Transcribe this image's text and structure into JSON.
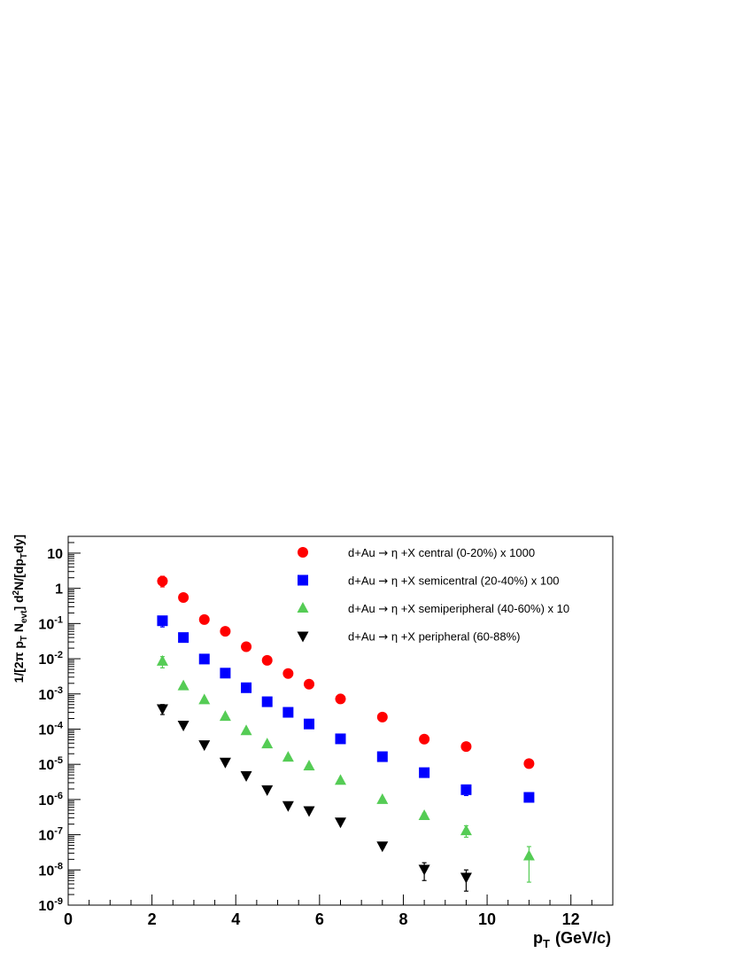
{
  "chart_data": {
    "type": "scatter",
    "x_axis": {
      "label": "p",
      "label_sub": "T",
      "label_unit": "(GeV/c)",
      "range": [
        0,
        13
      ],
      "ticks": [
        0,
        2,
        4,
        6,
        8,
        10,
        12
      ],
      "tick_labels": [
        "0",
        "2",
        "4",
        "6",
        "8",
        "10",
        "12"
      ]
    },
    "y_axis": {
      "scale": "log",
      "range": [
        1e-09,
        30
      ],
      "label": "1/[2π p_T N_evt] d²N/[dp_T dy]",
      "label_parts": [
        {
          "t": "1/[2π p",
          "s": "n"
        },
        {
          "t": "T",
          "s": "sub"
        },
        {
          "t": " N",
          "s": "n"
        },
        {
          "t": "evt",
          "s": "sub"
        },
        {
          "t": "] d",
          "s": "n"
        },
        {
          "t": "2",
          "s": "sup"
        },
        {
          "t": "N/[dp",
          "s": "n"
        },
        {
          "t": "T",
          "s": "sub"
        },
        {
          "t": "dy]",
          "s": "n"
        }
      ],
      "ticks": [
        {
          "value": 1e-09,
          "base": "10",
          "exp": "-9"
        },
        {
          "value": 1e-08,
          "base": "10",
          "exp": "-8"
        },
        {
          "value": 1e-07,
          "base": "10",
          "exp": "-7"
        },
        {
          "value": 1e-06,
          "base": "10",
          "exp": "-6"
        },
        {
          "value": 1e-05,
          "base": "10",
          "exp": "-5"
        },
        {
          "value": 0.0001,
          "base": "10",
          "exp": "-4"
        },
        {
          "value": 0.001,
          "base": "10",
          "exp": "-3"
        },
        {
          "value": 0.01,
          "base": "10",
          "exp": "-2"
        },
        {
          "value": 0.1,
          "base": "10",
          "exp": "-1"
        },
        {
          "value": 1,
          "base": "1",
          "exp": ""
        },
        {
          "value": 10,
          "base": "10",
          "exp": ""
        }
      ]
    },
    "legend_placement": "top-right",
    "grid": false,
    "series": [
      {
        "name": "d+Au → η +X central (0-20%) x 1000",
        "name_parts": [
          "d+Au ",
          "→",
          " η +X central (0-20%) x 1000"
        ],
        "marker": "circle",
        "color": "#ff0000",
        "x": [
          2.25,
          2.75,
          3.25,
          3.75,
          4.25,
          4.75,
          5.25,
          5.75,
          6.5,
          7.5,
          8.5,
          9.5,
          11.0
        ],
        "y": [
          1.6,
          0.55,
          0.13,
          0.06,
          0.022,
          0.009,
          0.0038,
          0.0019,
          0.00072,
          0.00022,
          5.2e-05,
          3.2e-05,
          1.05e-05
        ],
        "err_low": [
          1.1,
          0.52,
          0.124,
          0.058,
          0.021,
          0.0087,
          0.0037,
          0.0018,
          0.0007,
          0.000215,
          5e-05,
          3e-05,
          1e-05
        ],
        "err_high": [
          2.2,
          0.6,
          0.14,
          0.062,
          0.023,
          0.0093,
          0.0039,
          0.002,
          0.00074,
          0.000225,
          5.4e-05,
          3.4e-05,
          1.1e-05
        ]
      },
      {
        "name": "d+Au → η +X semicentral (20-40%) x 100",
        "name_parts": [
          "d+Au ",
          "→",
          " η +X semicentral (20-40%) x 100"
        ],
        "marker": "square",
        "color": "#0000ff",
        "x": [
          2.25,
          2.75,
          3.25,
          3.75,
          4.25,
          4.75,
          5.25,
          5.75,
          6.5,
          7.5,
          8.5,
          9.5,
          11.0
        ],
        "y": [
          0.12,
          0.04,
          0.0098,
          0.0039,
          0.0015,
          0.0006,
          0.0003,
          0.00014,
          5.3e-05,
          1.65e-05,
          5.8e-06,
          1.9e-06,
          1.15e-06
        ],
        "err_low": [
          0.08,
          0.037,
          0.0093,
          0.0037,
          0.00143,
          0.00057,
          0.000285,
          0.000133,
          5e-05,
          1.55e-05,
          5.3e-06,
          1.3e-06,
          1.05e-06
        ],
        "err_high": [
          0.16,
          0.043,
          0.0103,
          0.0041,
          0.00157,
          0.00063,
          0.000315,
          0.000147,
          5.6e-05,
          1.75e-05,
          6.3e-06,
          2.5e-06,
          1.25e-06
        ]
      },
      {
        "name": "d+Au → η +X semiperipheral (40-60%) x 10",
        "name_parts": [
          "d+Au ",
          "→",
          " η +X semiperipheral (40-60%) x 10"
        ],
        "marker": "triangle-up",
        "color": "#55cc55",
        "x": [
          2.25,
          2.75,
          3.25,
          3.75,
          4.25,
          4.75,
          5.25,
          5.75,
          6.5,
          7.5,
          8.5,
          9.5,
          11.0
        ],
        "y": [
          0.0085,
          0.0017,
          0.00068,
          0.00023,
          9e-05,
          3.8e-05,
          1.6e-05,
          9e-06,
          3.5e-06,
          1e-06,
          3.5e-07,
          1.3e-07,
          2.5e-08
        ],
        "err_low": [
          0.0055,
          0.0016,
          0.00064,
          0.000217,
          8.5e-05,
          3.6e-05,
          1.5e-05,
          8.5e-06,
          3.3e-06,
          9.3e-07,
          2.9e-07,
          8.5e-08,
          4.5e-09
        ],
        "err_high": [
          0.0115,
          0.0018,
          0.00072,
          0.000243,
          9.5e-05,
          4e-05,
          1.7e-05,
          9.5e-06,
          3.7e-06,
          1.07e-06,
          4.1e-07,
          1.8e-07,
          4.6e-08
        ]
      },
      {
        "name": "d+Au → η +X peripheral (60-88%)",
        "name_parts": [
          "d+Au ",
          "→",
          " η +X peripheral (60-88%)"
        ],
        "marker": "triangle-down",
        "color": "#000000",
        "x": [
          2.25,
          2.75,
          3.25,
          3.75,
          4.25,
          4.75,
          5.25,
          5.75,
          6.5,
          7.5,
          8.5,
          9.5
        ],
        "y": [
          0.00038,
          0.00013,
          3.6e-05,
          1.15e-05,
          4.8e-06,
          1.9e-06,
          6.7e-07,
          4.8e-07,
          2.3e-07,
          4.8e-08,
          1.05e-08,
          6.2e-09
        ],
        "err_low": [
          0.00026,
          0.000123,
          3.4e-05,
          1.09e-05,
          4.55e-06,
          1.8e-06,
          6.35e-07,
          4.55e-07,
          2.18e-07,
          4.2e-08,
          5e-09,
          2.5e-09
        ],
        "err_high": [
          0.0005,
          0.000137,
          3.8e-05,
          1.21e-05,
          5.05e-06,
          2e-06,
          7.05e-07,
          5.05e-07,
          2.42e-07,
          5.4e-08,
          1.6e-08,
          1e-08
        ]
      }
    ]
  }
}
